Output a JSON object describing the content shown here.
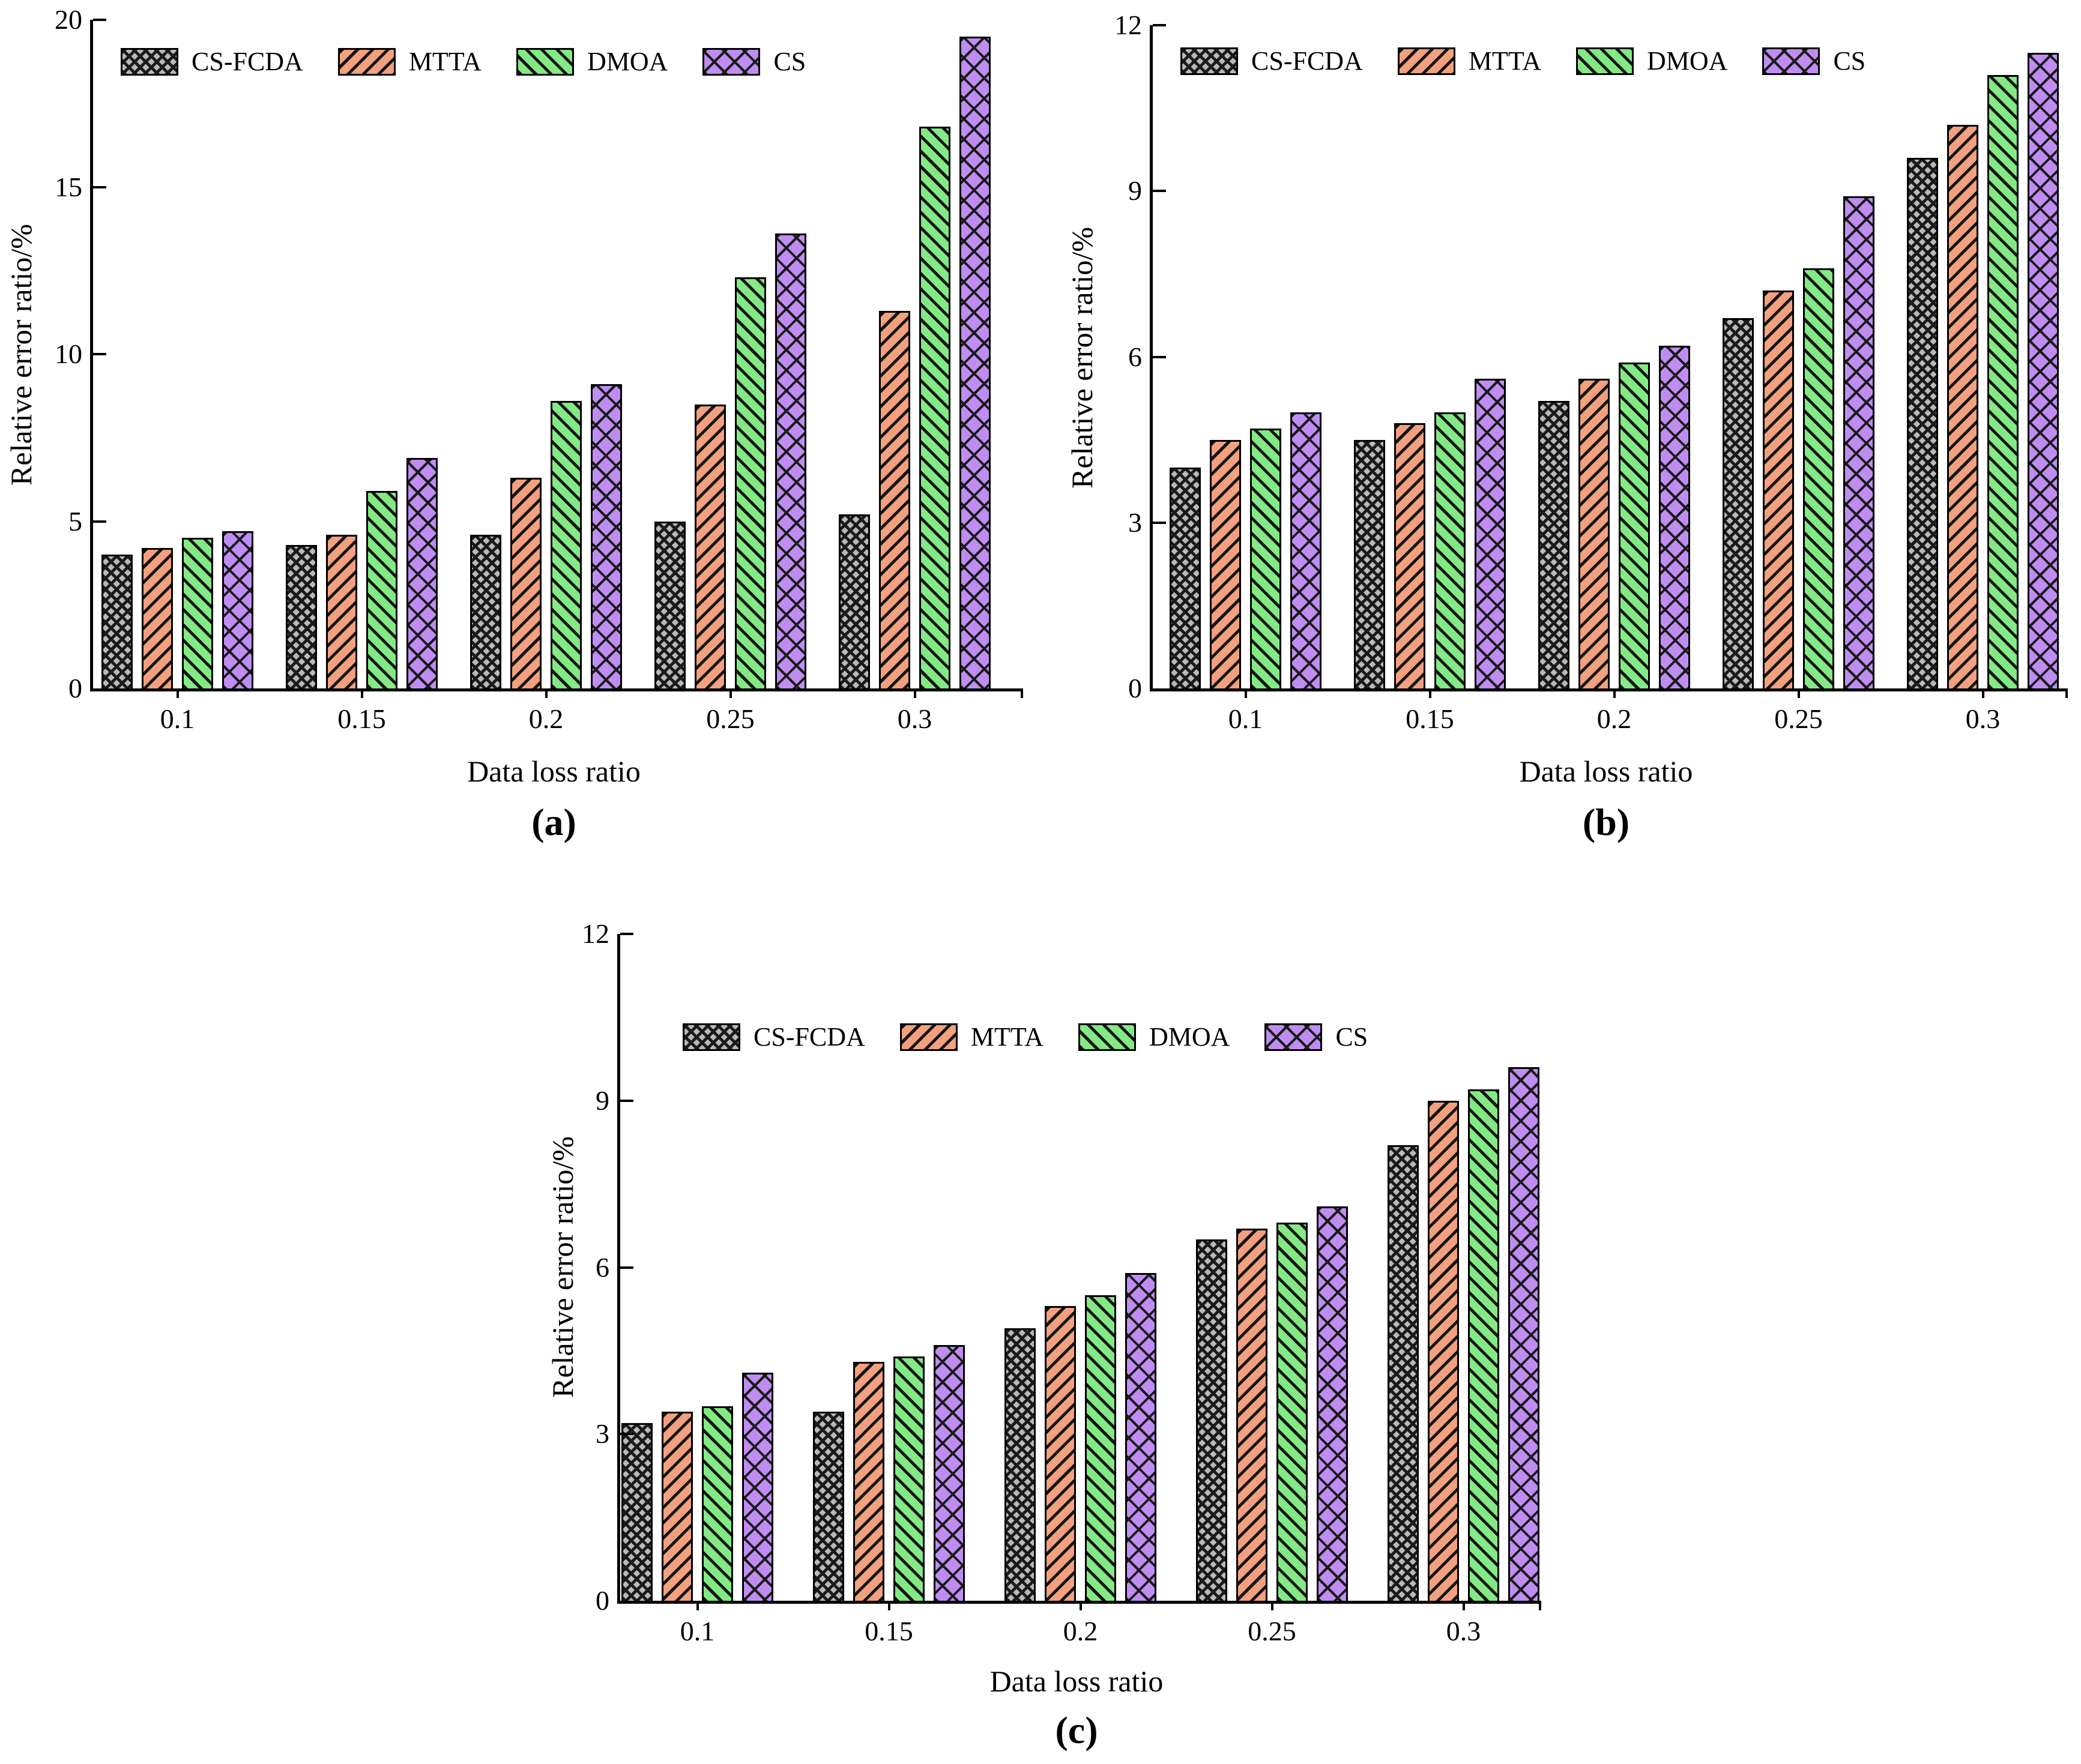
{
  "figure": {
    "background": "#ffffff",
    "axis_color": "#000000",
    "hatch_color": "#1a1a1a",
    "series_colors": {
      "CS-FCDA": "#b9b9b9",
      "MTTA": "#f2a07e",
      "DMOA": "#83ea83",
      "CS": "#bf8df2"
    }
  },
  "chart_data": [
    {
      "id": "a",
      "type": "bar",
      "caption": "(a)",
      "xlabel": "Data loss ratio",
      "ylabel": "Relative error ratio/%",
      "categories": [
        "0.1",
        "0.15",
        "0.2",
        "0.25",
        "0.3"
      ],
      "ylim": [
        0,
        20
      ],
      "yticks": [
        0,
        5,
        10,
        15,
        20
      ],
      "grid": false,
      "legend_position": "top-left-inside",
      "series": [
        {
          "name": "CS-FCDA",
          "key": "csfcda",
          "values": [
            4.0,
            4.3,
            4.6,
            5.0,
            5.2
          ]
        },
        {
          "name": "MTTA",
          "key": "mtta",
          "values": [
            4.2,
            4.6,
            6.3,
            8.5,
            11.3
          ]
        },
        {
          "name": "DMOA",
          "key": "dmoa",
          "values": [
            4.5,
            5.9,
            8.6,
            12.3,
            16.8
          ]
        },
        {
          "name": "CS",
          "key": "cs",
          "values": [
            4.7,
            6.9,
            9.1,
            13.6,
            19.5
          ]
        }
      ]
    },
    {
      "id": "b",
      "type": "bar",
      "caption": "(b)",
      "xlabel": "Data loss ratio",
      "ylabel": "Relative error ratio/%",
      "categories": [
        "0.1",
        "0.15",
        "0.2",
        "0.25",
        "0.3"
      ],
      "ylim": [
        0,
        12
      ],
      "yticks": [
        0,
        3,
        6,
        9,
        12
      ],
      "grid": false,
      "legend_position": "top-left-inside",
      "series": [
        {
          "name": "CS-FCDA",
          "key": "csfcda",
          "values": [
            4.0,
            4.5,
            5.2,
            6.7,
            9.6
          ]
        },
        {
          "name": "MTTA",
          "key": "mtta",
          "values": [
            4.5,
            4.8,
            5.6,
            7.2,
            10.2
          ]
        },
        {
          "name": "DMOA",
          "key": "dmoa",
          "values": [
            4.7,
            5.0,
            5.9,
            7.6,
            11.1
          ]
        },
        {
          "name": "CS",
          "key": "cs",
          "values": [
            5.0,
            5.6,
            6.2,
            8.9,
            11.5
          ]
        }
      ]
    },
    {
      "id": "c",
      "type": "bar",
      "caption": "(c)",
      "xlabel": "Data loss ratio",
      "ylabel": "Relative error ratio/%",
      "categories": [
        "0.1",
        "0.15",
        "0.2",
        "0.25",
        "0.3"
      ],
      "ylim": [
        0,
        12
      ],
      "yticks": [
        0,
        3,
        6,
        9,
        12
      ],
      "grid": false,
      "legend_position": "top-left-inside",
      "series": [
        {
          "name": "CS-FCDA",
          "key": "csfcda",
          "values": [
            3.2,
            3.4,
            4.9,
            6.5,
            8.2
          ]
        },
        {
          "name": "MTTA",
          "key": "mtta",
          "values": [
            3.4,
            4.3,
            5.3,
            6.7,
            9.0
          ]
        },
        {
          "name": "DMOA",
          "key": "dmoa",
          "values": [
            3.5,
            4.4,
            5.5,
            6.8,
            9.2
          ]
        },
        {
          "name": "CS",
          "key": "cs",
          "values": [
            4.1,
            4.6,
            5.9,
            7.1,
            9.6
          ]
        }
      ]
    }
  ]
}
